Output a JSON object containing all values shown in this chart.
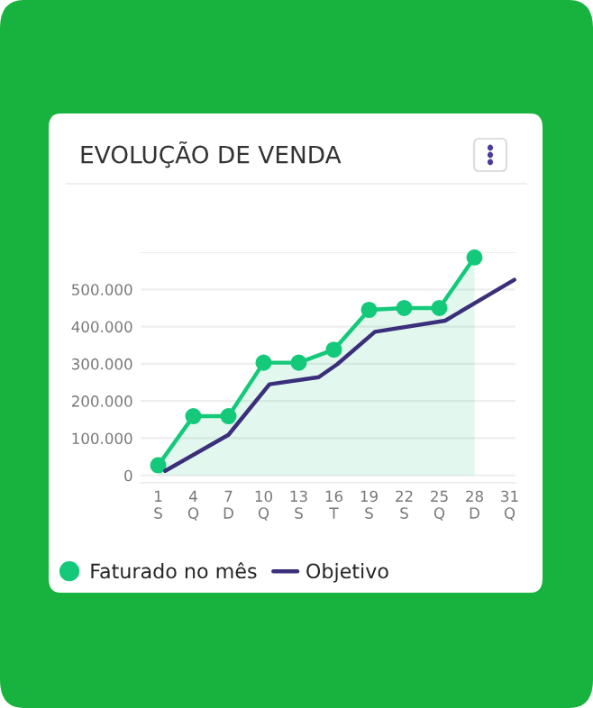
{
  "chart_data": {
    "type": "line",
    "title": "EVOLUÇÃO DE VENDA",
    "series": [
      {
        "name": "Faturado no mês",
        "type": "area",
        "color": "#14c97a",
        "marker": "circle",
        "x": [
          1,
          4,
          7,
          10,
          13,
          16,
          19,
          22,
          25,
          28
        ],
        "values": [
          27000,
          159000,
          159000,
          303000,
          303000,
          338000,
          445000,
          450000,
          450000,
          586000
        ]
      },
      {
        "name": "Objetivo",
        "type": "line",
        "color": "#3b2f7a",
        "marker": "none",
        "x": [
          1.6,
          7,
          10.5,
          14.7,
          16.3,
          19.5,
          25.5,
          28.4,
          31.4
        ],
        "values": [
          12000,
          109000,
          245000,
          264000,
          299000,
          386000,
          416000,
          470000,
          526000
        ]
      }
    ],
    "xlim": [
      -0.5,
      31.5
    ],
    "xticks": [
      {
        "value": 1,
        "label": "1\nS"
      },
      {
        "value": 4,
        "label": "4\nQ"
      },
      {
        "value": 7,
        "label": "7\nD"
      },
      {
        "value": 10,
        "label": "10\nQ"
      },
      {
        "value": 13,
        "label": "13\nS"
      },
      {
        "value": 16,
        "label": "16\nT"
      },
      {
        "value": 19,
        "label": "19\nS"
      },
      {
        "value": 22,
        "label": "22\nS"
      },
      {
        "value": 25,
        "label": "25\nQ"
      },
      {
        "value": 28,
        "label": "28\nD"
      },
      {
        "value": 31,
        "label": "31\nQ"
      }
    ],
    "ylim": [
      -20000,
      600000
    ],
    "yticks": [
      {
        "value": 0,
        "label": "0"
      },
      {
        "value": 100000,
        "label": "100.000"
      },
      {
        "value": 200000,
        "label": "200.000"
      },
      {
        "value": 300000,
        "label": "300.000"
      },
      {
        "value": 400000,
        "label": "400.000"
      },
      {
        "value": 500000,
        "label": "500.000"
      },
      {
        "value": 600000,
        "label": null
      }
    ],
    "grid": "y",
    "legend": "bottom"
  }
}
